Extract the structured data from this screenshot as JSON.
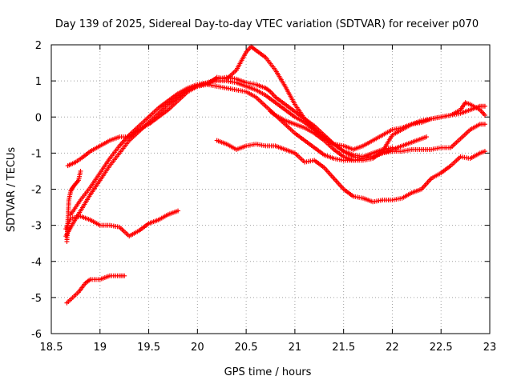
{
  "chart_data": {
    "type": "scatter",
    "title": "Day 139 of 2025, Sidereal Day-to-day VTEC variation (SDTVAR) for receiver p070",
    "xlabel": "GPS time / hours",
    "ylabel": "SDTVAR / TECUs",
    "xlim": [
      18.5,
      23
    ],
    "ylim": [
      -6,
      2
    ],
    "xticks": [
      "18.5",
      "19",
      "19.5",
      "20",
      "20.5",
      "21",
      "21.5",
      "22",
      "22.5",
      "23"
    ],
    "yticks": [
      "-6",
      "-5",
      "-4",
      "-3",
      "-2",
      "-1",
      "0",
      "1",
      "2"
    ],
    "grid": true,
    "marker": "+",
    "color": "#ff0000",
    "series": [
      {
        "name": "s1",
        "x": [
          18.67,
          18.75,
          18.83,
          18.9,
          19.0,
          19.1,
          19.2,
          19.3,
          19.4,
          19.5,
          19.6,
          19.7,
          19.8,
          19.9,
          20.0,
          20.1,
          20.2,
          20.3,
          20.4,
          20.5,
          20.6,
          20.7,
          20.75,
          20.8,
          20.9,
          21.0,
          21.1,
          21.2,
          21.3,
          21.4,
          21.5,
          21.6,
          21.7,
          21.8,
          21.9,
          22.0
        ],
        "y": [
          -1.35,
          -1.25,
          -1.1,
          -0.95,
          -0.8,
          -0.65,
          -0.55,
          -0.55,
          -0.35,
          -0.2,
          0.0,
          0.2,
          0.45,
          0.7,
          0.85,
          0.95,
          1.05,
          1.1,
          1.05,
          0.95,
          0.9,
          0.8,
          0.7,
          0.55,
          0.35,
          0.15,
          -0.05,
          -0.25,
          -0.5,
          -0.75,
          -0.95,
          -1.05,
          -1.1,
          -1.0,
          -0.9,
          -0.85
        ]
      },
      {
        "name": "s2",
        "x": [
          18.65,
          18.7,
          18.8,
          18.9,
          19.0,
          19.1,
          19.2,
          19.3,
          19.4,
          19.5,
          19.6,
          19.7,
          19.8,
          19.9,
          20.0,
          20.1,
          20.2,
          20.3,
          20.4,
          20.5,
          20.6,
          20.7,
          20.8,
          20.9,
          21.0,
          21.1,
          21.2,
          21.3,
          21.4,
          21.5,
          21.6,
          21.7,
          21.8,
          21.9,
          22.0,
          22.1,
          22.2,
          22.3,
          22.35
        ],
        "y": [
          -3.3,
          -3.05,
          -2.6,
          -2.15,
          -1.75,
          -1.35,
          -1.0,
          -0.65,
          -0.4,
          -0.15,
          0.1,
          0.35,
          0.55,
          0.75,
          0.85,
          0.9,
          0.85,
          0.8,
          0.75,
          0.7,
          0.55,
          0.3,
          0.05,
          -0.2,
          -0.45,
          -0.65,
          -0.85,
          -1.05,
          -1.15,
          -1.2,
          -1.2,
          -1.15,
          -1.1,
          -1.0,
          -0.9,
          -0.8,
          -0.7,
          -0.6,
          -0.55
        ]
      },
      {
        "name": "s3",
        "x": [
          18.7,
          18.8,
          18.9,
          19.0,
          19.1,
          19.2,
          19.3,
          19.4,
          19.5,
          19.6,
          19.7,
          19.8,
          19.9,
          20.0,
          20.1,
          20.2,
          20.3,
          20.4,
          20.5,
          20.6,
          20.7,
          20.8,
          20.9,
          21.0,
          21.1,
          21.2,
          21.3,
          21.4,
          21.5,
          21.6,
          21.7,
          21.8,
          21.9,
          22.0,
          22.1,
          22.2,
          22.3,
          22.4,
          22.5,
          22.6,
          22.7,
          22.8,
          22.9,
          22.95
        ],
        "y": [
          -2.7,
          -2.3,
          -1.95,
          -1.55,
          -1.15,
          -0.8,
          -0.5,
          -0.25,
          0.0,
          0.25,
          0.45,
          0.65,
          0.8,
          0.9,
          0.95,
          1.0,
          1.0,
          0.95,
          0.85,
          0.75,
          0.6,
          0.4,
          0.2,
          0.0,
          -0.15,
          -0.35,
          -0.55,
          -0.75,
          -0.95,
          -1.1,
          -1.15,
          -1.1,
          -1.0,
          -0.95,
          -0.95,
          -0.9,
          -0.9,
          -0.9,
          -0.85,
          -0.85,
          -0.6,
          -0.35,
          -0.2,
          -0.2
        ]
      },
      {
        "name": "s4",
        "x": [
          20.1,
          20.2,
          20.3,
          20.4,
          20.5,
          20.55,
          20.6,
          20.7,
          20.8,
          20.9,
          21.0,
          21.1,
          21.2,
          21.3,
          21.4,
          21.5,
          21.6,
          21.7,
          21.8,
          21.9,
          22.0,
          22.1,
          22.2,
          22.3,
          22.4,
          22.5,
          22.6,
          22.7,
          22.75,
          22.8,
          22.9,
          22.95
        ],
        "y": [
          0.9,
          1.1,
          1.05,
          1.3,
          1.8,
          1.95,
          1.85,
          1.65,
          1.3,
          0.85,
          0.35,
          -0.05,
          -0.35,
          -0.6,
          -0.75,
          -0.8,
          -0.9,
          -0.8,
          -0.65,
          -0.5,
          -0.35,
          -0.3,
          -0.2,
          -0.15,
          -0.05,
          0.0,
          0.05,
          0.2,
          0.4,
          0.35,
          0.2,
          0.05
        ]
      },
      {
        "name": "s5",
        "x": [
          20.75,
          20.8,
          20.9,
          21.0,
          21.1,
          21.2,
          21.3,
          21.4,
          21.5,
          21.6,
          21.7,
          21.8,
          21.9,
          22.0,
          22.1,
          22.2,
          22.3,
          22.4,
          22.5,
          22.6,
          22.7,
          22.8,
          22.9,
          22.95
        ],
        "y": [
          0.15,
          0.05,
          -0.1,
          -0.2,
          -0.3,
          -0.45,
          -0.65,
          -0.9,
          -1.1,
          -1.2,
          -1.2,
          -1.15,
          -0.95,
          -0.5,
          -0.35,
          -0.2,
          -0.1,
          -0.05,
          0.0,
          0.05,
          0.1,
          0.2,
          0.3,
          0.3
        ]
      },
      {
        "name": "s6",
        "x": [
          20.2,
          20.3,
          20.4,
          20.5,
          20.6,
          20.7,
          20.8,
          20.9,
          21.0,
          21.1,
          21.2,
          21.3,
          21.4,
          21.5,
          21.6,
          21.7,
          21.8,
          21.9,
          22.0,
          22.1,
          22.2,
          22.3,
          22.4,
          22.5,
          22.6,
          22.7,
          22.8,
          22.9,
          22.95
        ],
        "y": [
          -0.65,
          -0.75,
          -0.9,
          -0.8,
          -0.75,
          -0.8,
          -0.8,
          -0.9,
          -1.0,
          -1.25,
          -1.2,
          -1.4,
          -1.7,
          -2.0,
          -2.2,
          -2.25,
          -2.35,
          -2.3,
          -2.3,
          -2.25,
          -2.1,
          -2.0,
          -1.7,
          -1.55,
          -1.35,
          -1.1,
          -1.15,
          -1.0,
          -0.95
        ]
      },
      {
        "name": "s7",
        "x": [
          18.65,
          18.7,
          18.8,
          18.9,
          19.0,
          19.1,
          19.2,
          19.3,
          19.4,
          19.5,
          19.6,
          19.7,
          19.8
        ],
        "y": [
          -3.1,
          -2.8,
          -2.75,
          -2.85,
          -3.0,
          -3.0,
          -3.05,
          -3.3,
          -3.15,
          -2.95,
          -2.85,
          -2.7,
          -2.6
        ]
      },
      {
        "name": "s8",
        "x": [
          18.66,
          18.72,
          18.78,
          18.85,
          18.9,
          19.0,
          19.1,
          19.2,
          19.25
        ],
        "y": [
          -5.15,
          -5.0,
          -4.85,
          -4.6,
          -4.5,
          -4.5,
          -4.4,
          -4.4,
          -4.4
        ]
      },
      {
        "name": "s9",
        "x": [
          18.66,
          18.68,
          18.7,
          18.72,
          18.75,
          18.78,
          18.8
        ],
        "y": [
          -3.45,
          -2.3,
          -2.05,
          -1.95,
          -1.85,
          -1.75,
          -1.5
        ]
      }
    ]
  }
}
